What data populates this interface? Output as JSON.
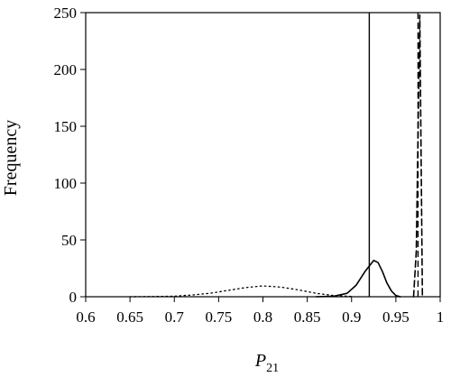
{
  "chart_data": {
    "type": "line",
    "xlabel": "P",
    "xlabel_sub": "21",
    "ylabel": "Frequency",
    "xlim": [
      0.6,
      1.0
    ],
    "ylim": [
      0,
      250
    ],
    "grid": false,
    "x_ticks": [
      0.6,
      0.65,
      0.7,
      0.75,
      0.8,
      0.85,
      0.9,
      0.95,
      1.0
    ],
    "x_tick_labels": [
      "0.6",
      "0.65",
      "0.7",
      "0.75",
      "0.8",
      "0.85",
      "0.9",
      "0.95",
      "1"
    ],
    "y_ticks": [
      0,
      50,
      100,
      150,
      200,
      250
    ],
    "y_tick_labels": [
      "0",
      "50",
      "100",
      "150",
      "200",
      "250"
    ],
    "series": [
      {
        "style": "dotted",
        "points": [
          [
            0.65,
            0
          ],
          [
            0.68,
            0.2
          ],
          [
            0.7,
            0.5
          ],
          [
            0.72,
            1.5
          ],
          [
            0.74,
            3
          ],
          [
            0.76,
            5.5
          ],
          [
            0.78,
            8
          ],
          [
            0.8,
            9.5
          ],
          [
            0.82,
            8.5
          ],
          [
            0.84,
            6
          ],
          [
            0.86,
            3
          ],
          [
            0.88,
            1
          ],
          [
            0.9,
            0.2
          ]
        ]
      },
      {
        "style": "solid",
        "points": [
          [
            0.86,
            0
          ],
          [
            0.88,
            0.5
          ],
          [
            0.895,
            3
          ],
          [
            0.905,
            10
          ],
          [
            0.915,
            22
          ],
          [
            0.925,
            32
          ],
          [
            0.93,
            30
          ],
          [
            0.935,
            22
          ],
          [
            0.94,
            12
          ],
          [
            0.945,
            5
          ],
          [
            0.95,
            1
          ],
          [
            0.955,
            0
          ]
        ]
      },
      {
        "style": "dashed",
        "points": [
          [
            0.97,
            0
          ],
          [
            0.973,
            40
          ],
          [
            0.975,
            140
          ],
          [
            0.977,
            248
          ],
          [
            0.98,
            0
          ]
        ]
      }
    ],
    "vertical_lines": [
      {
        "x": 0.92,
        "style": "solid"
      },
      {
        "x": 0.975,
        "style": "dashed"
      }
    ]
  }
}
